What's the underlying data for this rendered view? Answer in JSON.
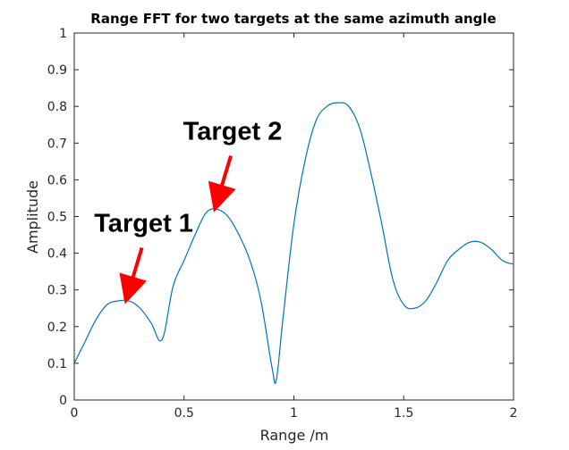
{
  "chart_data": {
    "type": "line",
    "title": "Range FFT for two targets at the same azimuth angle",
    "xlabel": "Range /m",
    "ylabel": "Amplitude",
    "xlim": [
      0,
      2
    ],
    "ylim": [
      0,
      1
    ],
    "xticks": [
      0,
      0.5,
      1,
      1.5,
      2
    ],
    "xtick_labels": [
      "0",
      "0.5",
      "1",
      "1.5",
      "2"
    ],
    "yticks": [
      0,
      0.1,
      0.2,
      0.3,
      0.4,
      0.5,
      0.6,
      0.7,
      0.8,
      0.9,
      1
    ],
    "ytick_labels": [
      "0",
      "0.1",
      "0.2",
      "0.3",
      "0.4",
      "0.5",
      "0.6",
      "0.7",
      "0.8",
      "0.9",
      "1"
    ],
    "grid": false,
    "series": [
      {
        "color": "#0072bd",
        "x": [
          0,
          0.05,
          0.1,
          0.15,
          0.2,
          0.25,
          0.3,
          0.35,
          0.4,
          0.45,
          0.5,
          0.55,
          0.6,
          0.65,
          0.7,
          0.75,
          0.8,
          0.85,
          0.9,
          0.92,
          0.95,
          1.0,
          1.05,
          1.1,
          1.15,
          1.2,
          1.25,
          1.3,
          1.35,
          1.4,
          1.45,
          1.5,
          1.55,
          1.6,
          1.65,
          1.7,
          1.75,
          1.8,
          1.85,
          1.9,
          1.95,
          2.0
        ],
        "y": [
          0.1,
          0.16,
          0.22,
          0.26,
          0.27,
          0.27,
          0.25,
          0.21,
          0.165,
          0.31,
          0.38,
          0.45,
          0.51,
          0.52,
          0.5,
          0.45,
          0.38,
          0.27,
          0.09,
          0.055,
          0.22,
          0.48,
          0.65,
          0.76,
          0.8,
          0.81,
          0.8,
          0.74,
          0.62,
          0.48,
          0.33,
          0.26,
          0.25,
          0.27,
          0.32,
          0.38,
          0.41,
          0.43,
          0.43,
          0.41,
          0.38,
          0.37
        ]
      }
    ],
    "annotations": [
      {
        "text": "Target 1",
        "x": 0.24,
        "y": 0.28,
        "arrow_color": "#ff0000"
      },
      {
        "text": "Target 2",
        "x": 0.645,
        "y": 0.53,
        "arrow_color": "#ff0000"
      }
    ]
  }
}
